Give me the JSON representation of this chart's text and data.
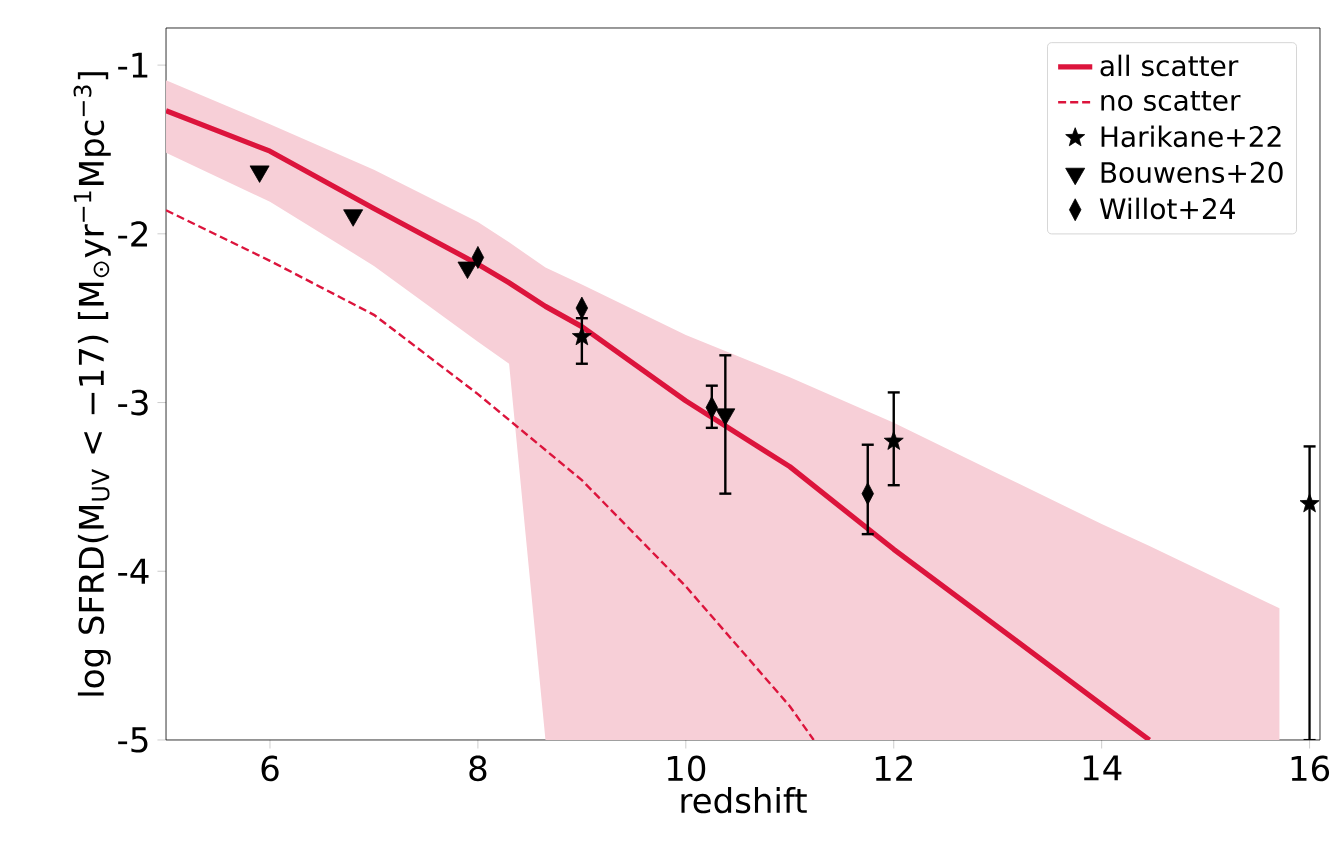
{
  "chart_data": {
    "type": "line",
    "xlabel": "redshift",
    "ylabel": "log SFRD(M$_{UV}$ < −17) [M$_{⊙}$yr$^{−1}$Mpc$^{−3}$]",
    "xlim": [
      5,
      16.1
    ],
    "ylim": [
      -5,
      -0.78
    ],
    "xticks": [
      6,
      8,
      10,
      12,
      14,
      16
    ],
    "yticks": [
      -5,
      -4,
      -3,
      -2,
      -1
    ],
    "legend": "top right",
    "series": [
      {
        "name": "all scatter",
        "color": "#dc143c",
        "line_style": "solid",
        "x": [
          5,
          6,
          7,
          8,
          8.3,
          8.65,
          9,
          10,
          11,
          12,
          13,
          14,
          14.46,
          15.71
        ],
        "values": [
          -1.27,
          -1.51,
          -1.85,
          -2.18,
          -2.29,
          -2.43,
          -2.55,
          -2.99,
          -3.38,
          -3.87,
          -4.33,
          -4.79,
          -5,
          null
        ],
        "upper": [
          -1.09,
          -1.35,
          -1.62,
          -1.93,
          -2.05,
          -2.2,
          -2.3,
          -2.6,
          -2.85,
          -3.12,
          -3.42,
          -3.72,
          -3.85,
          -4.22
        ],
        "lower": [
          -1.52,
          -1.81,
          -2.19,
          -2.64,
          -2.77,
          -5,
          -5,
          -5,
          -5,
          -5,
          -5,
          -5,
          -5,
          -5
        ]
      },
      {
        "name": "no scatter",
        "color": "#dc143c",
        "line_style": "dashed",
        "x": [
          5,
          6,
          7,
          8,
          9,
          10,
          11,
          11.23
        ],
        "values": [
          -1.86,
          -2.16,
          -2.48,
          -2.95,
          -3.46,
          -4.09,
          -4.8,
          -5
        ]
      },
      {
        "name": "Harikane+22",
        "type": "scatter",
        "color": "#000000",
        "marker": "star",
        "x": [
          9,
          12,
          16
        ],
        "values": [
          -2.61,
          -3.23,
          -3.6
        ],
        "errors": [
          [
            -2.77,
            -2.5
          ],
          [
            -3.49,
            -2.94
          ],
          [
            -5,
            -3.26
          ]
        ]
      },
      {
        "name": "Bouwens+20",
        "type": "scatter",
        "color": "#000000",
        "marker": "triangle",
        "x": [
          5.9,
          6.8,
          7.9,
          10.38
        ],
        "values": [
          -1.63,
          -1.89,
          -2.2,
          -3.07
        ],
        "errors": [
          null,
          null,
          null,
          [
            -3.54,
            -2.72
          ]
        ]
      },
      {
        "name": "Willot+24",
        "type": "scatter",
        "color": "#000000",
        "marker": "diamond",
        "x": [
          8,
          9,
          10.25,
          11.75
        ],
        "values": [
          -2.14,
          -2.44,
          -3.03,
          -3.54
        ],
        "errors": [
          null,
          null,
          [
            -3.15,
            -2.9
          ],
          [
            -3.78,
            -3.25
          ]
        ]
      }
    ]
  }
}
